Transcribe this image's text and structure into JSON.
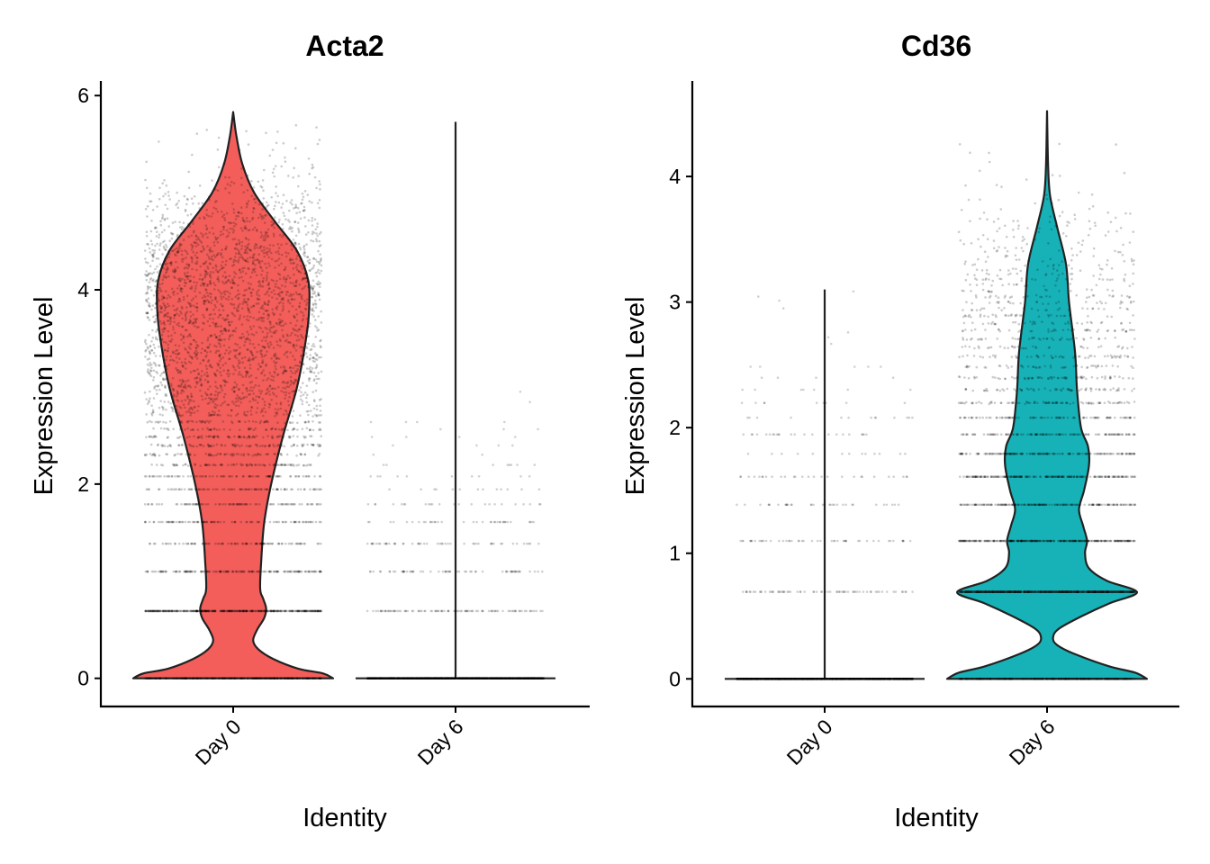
{
  "chart_data": [
    {
      "type": "violin",
      "title": "Acta2",
      "xlabel": "Identity",
      "ylabel": "Expression Level",
      "categories": [
        "Day 0",
        "Day 6"
      ],
      "ylim": [
        -0.29,
        6.15
      ],
      "yticks": [
        "0",
        "2",
        "4",
        "6"
      ],
      "grid": false,
      "legend": "none",
      "jitter_points": true,
      "series": [
        {
          "category": "Day 0",
          "fill": "#F35E5A",
          "max": 5.83,
          "shape": "violin",
          "density_profile": [
            [
              0,
              1.0
            ],
            [
              0.05,
              0.9
            ],
            [
              0.1,
              0.65
            ],
            [
              0.2,
              0.4
            ],
            [
              0.3,
              0.25
            ],
            [
              0.39,
              0.2
            ],
            [
              0.5,
              0.24
            ],
            [
              0.62,
              0.31
            ],
            [
              0.72,
              0.33
            ],
            [
              0.82,
              0.3
            ],
            [
              0.92,
              0.27
            ],
            [
              1.2,
              0.28
            ],
            [
              1.6,
              0.31
            ],
            [
              2.0,
              0.38
            ],
            [
              2.5,
              0.5
            ],
            [
              3.0,
              0.64
            ],
            [
              3.5,
              0.73
            ],
            [
              3.8,
              0.76
            ],
            [
              4.1,
              0.75
            ],
            [
              4.4,
              0.64
            ],
            [
              4.7,
              0.42
            ],
            [
              5.0,
              0.21
            ],
            [
              5.3,
              0.09
            ],
            [
              5.6,
              0.03
            ],
            [
              5.83,
              0.0
            ]
          ]
        },
        {
          "category": "Day 6",
          "fill": "#17B2B7",
          "max": 5.73,
          "shape": "spike"
        }
      ]
    },
    {
      "type": "violin",
      "title": "Cd36",
      "xlabel": "Identity",
      "ylabel": "Expression Level",
      "categories": [
        "Day 0",
        "Day 6"
      ],
      "ylim": [
        -0.22,
        4.76
      ],
      "yticks": [
        "0",
        "1",
        "2",
        "3",
        "4"
      ],
      "grid": false,
      "legend": "none",
      "jitter_points": true,
      "series": [
        {
          "category": "Day 0",
          "fill": "#F35E5A",
          "max": 3.1,
          "shape": "spike"
        },
        {
          "category": "Day 6",
          "fill": "#17B2B7",
          "max": 4.52,
          "shape": "violin",
          "density_profile": [
            [
              0,
              1.0
            ],
            [
              0.05,
              0.88
            ],
            [
              0.1,
              0.62
            ],
            [
              0.2,
              0.27
            ],
            [
              0.27,
              0.1
            ],
            [
              0.33,
              0.06
            ],
            [
              0.4,
              0.12
            ],
            [
              0.5,
              0.35
            ],
            [
              0.6,
              0.62
            ],
            [
              0.69,
              0.9
            ],
            [
              0.78,
              0.6
            ],
            [
              0.88,
              0.42
            ],
            [
              1.0,
              0.38
            ],
            [
              1.1,
              0.4
            ],
            [
              1.22,
              0.36
            ],
            [
              1.35,
              0.32
            ],
            [
              1.5,
              0.37
            ],
            [
              1.7,
              0.42
            ],
            [
              1.85,
              0.41
            ],
            [
              2.0,
              0.34
            ],
            [
              2.3,
              0.3
            ],
            [
              2.6,
              0.28
            ],
            [
              3.0,
              0.22
            ],
            [
              3.3,
              0.19
            ],
            [
              3.6,
              0.1
            ],
            [
              3.85,
              0.03
            ],
            [
              4.1,
              0.01
            ],
            [
              4.52,
              0.0
            ]
          ]
        }
      ]
    }
  ]
}
